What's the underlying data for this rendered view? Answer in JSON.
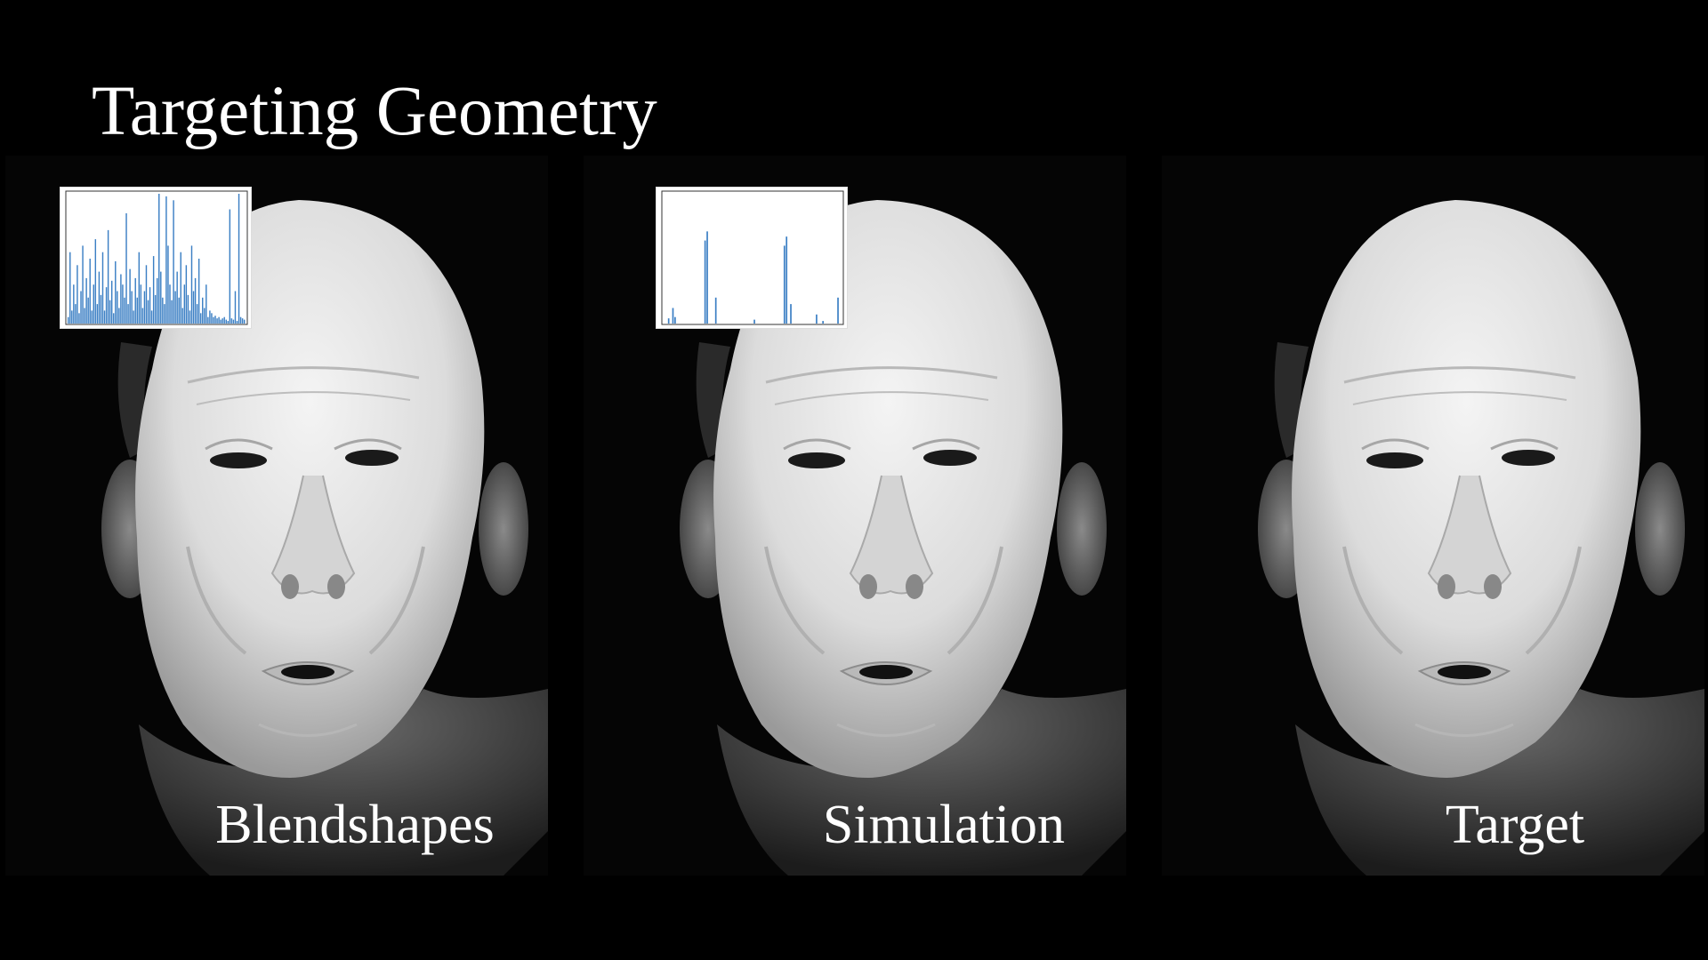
{
  "title": "Targeting Geometry",
  "panels": [
    {
      "label": "Blendshapes",
      "has_chart": true
    },
    {
      "label": "Simulation",
      "has_chart": true
    },
    {
      "label": "Target",
      "has_chart": false
    }
  ],
  "colors": {
    "background": "#000000",
    "bar": "#3b7fc4",
    "skin_light": "#f2f2f2",
    "skin_mid": "#c4c4c4",
    "skin_dark": "#7a7a7a"
  },
  "chart_data": [
    {
      "type": "bar",
      "panel": "Blendshapes",
      "title": "",
      "xlabel": "",
      "ylabel": "",
      "ylim": [
        0,
        1
      ],
      "values": [
        0.05,
        0.55,
        0.1,
        0.3,
        0.15,
        0.45,
        0.08,
        0.25,
        0.6,
        0.12,
        0.35,
        0.2,
        0.5,
        0.1,
        0.3,
        0.65,
        0.15,
        0.4,
        0.22,
        0.55,
        0.1,
        0.28,
        0.72,
        0.18,
        0.33,
        0.08,
        0.48,
        0.25,
        0.12,
        0.38,
        0.3,
        0.2,
        0.85,
        0.15,
        0.42,
        0.25,
        0.1,
        0.35,
        0.2,
        0.55,
        0.3,
        0.12,
        0.25,
        0.45,
        0.18,
        0.28,
        0.1,
        0.52,
        0.22,
        0.35,
        1.0,
        0.4,
        0.2,
        0.15,
        0.98,
        0.6,
        0.3,
        0.18,
        0.95,
        0.25,
        0.4,
        0.2,
        0.55,
        0.12,
        0.3,
        0.45,
        0.22,
        0.1,
        0.6,
        0.25,
        0.35,
        0.15,
        0.5,
        0.08,
        0.2,
        0.12,
        0.3,
        0.05,
        0.1,
        0.08,
        0.05,
        0.06,
        0.04,
        0.05,
        0.03,
        0.04,
        0.05,
        0.03,
        0.02,
        0.88,
        0.04,
        0.03,
        0.25,
        0.02,
        1.0,
        0.05,
        0.04,
        0.03
      ]
    },
    {
      "type": "bar",
      "panel": "Simulation",
      "title": "",
      "xlabel": "",
      "ylabel": "",
      "ylim": [
        0,
        1
      ],
      "values": [
        0,
        0,
        0.04,
        0,
        0.12,
        0.05,
        0,
        0,
        0,
        0,
        0,
        0,
        0,
        0,
        0,
        0,
        0,
        0,
        0,
        0.64,
        0.71,
        0,
        0,
        0,
        0.2,
        0,
        0,
        0,
        0,
        0,
        0,
        0,
        0,
        0,
        0,
        0,
        0,
        0,
        0,
        0,
        0,
        0,
        0.03,
        0,
        0,
        0,
        0,
        0,
        0,
        0,
        0,
        0,
        0,
        0,
        0,
        0,
        0.6,
        0.67,
        0,
        0.15,
        0,
        0,
        0,
        0,
        0,
        0,
        0,
        0,
        0,
        0,
        0,
        0.07,
        0,
        0,
        0.02,
        0,
        0,
        0,
        0,
        0,
        0,
        0.2,
        0
      ]
    }
  ]
}
